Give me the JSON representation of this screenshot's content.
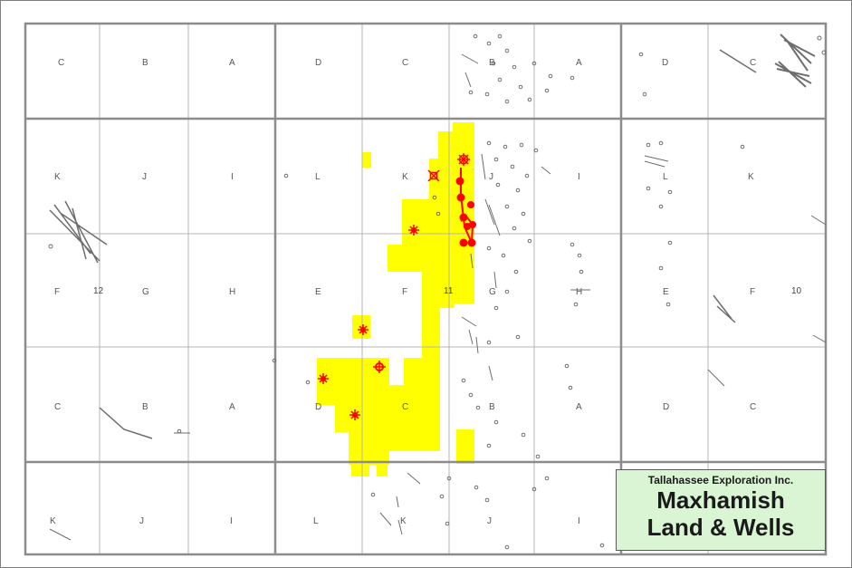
{
  "legend": {
    "company": "Tallahassee Exploration Inc.",
    "title_line1": "Maxhamish",
    "title_line2": "Land & Wells"
  },
  "map": {
    "row_labels": [
      [
        "C",
        "B",
        "A",
        "D",
        "C",
        "B",
        "A",
        "D",
        "C"
      ],
      [
        "K",
        "J",
        "I",
        "L",
        "K",
        "J",
        "I",
        "L",
        "K"
      ],
      [
        "F",
        "G",
        "H",
        "E",
        "F",
        "G",
        "H",
        "E",
        "F"
      ],
      [
        "C",
        "B",
        "A",
        "D",
        "C",
        "B",
        "A",
        "D",
        "C"
      ],
      [
        "K",
        "J",
        "I",
        "L",
        "K",
        "J",
        "I",
        "",
        ""
      ]
    ],
    "section_numbers": [
      "12",
      "11",
      "10"
    ],
    "colors": {
      "land": "#ffff00",
      "well": "#ff0000",
      "grid_major": "#8c8c8c",
      "grid_minor": "#b4b4b4",
      "offset_wells": "#6e6e6e",
      "legend_bg": "#d9f5d3"
    }
  }
}
